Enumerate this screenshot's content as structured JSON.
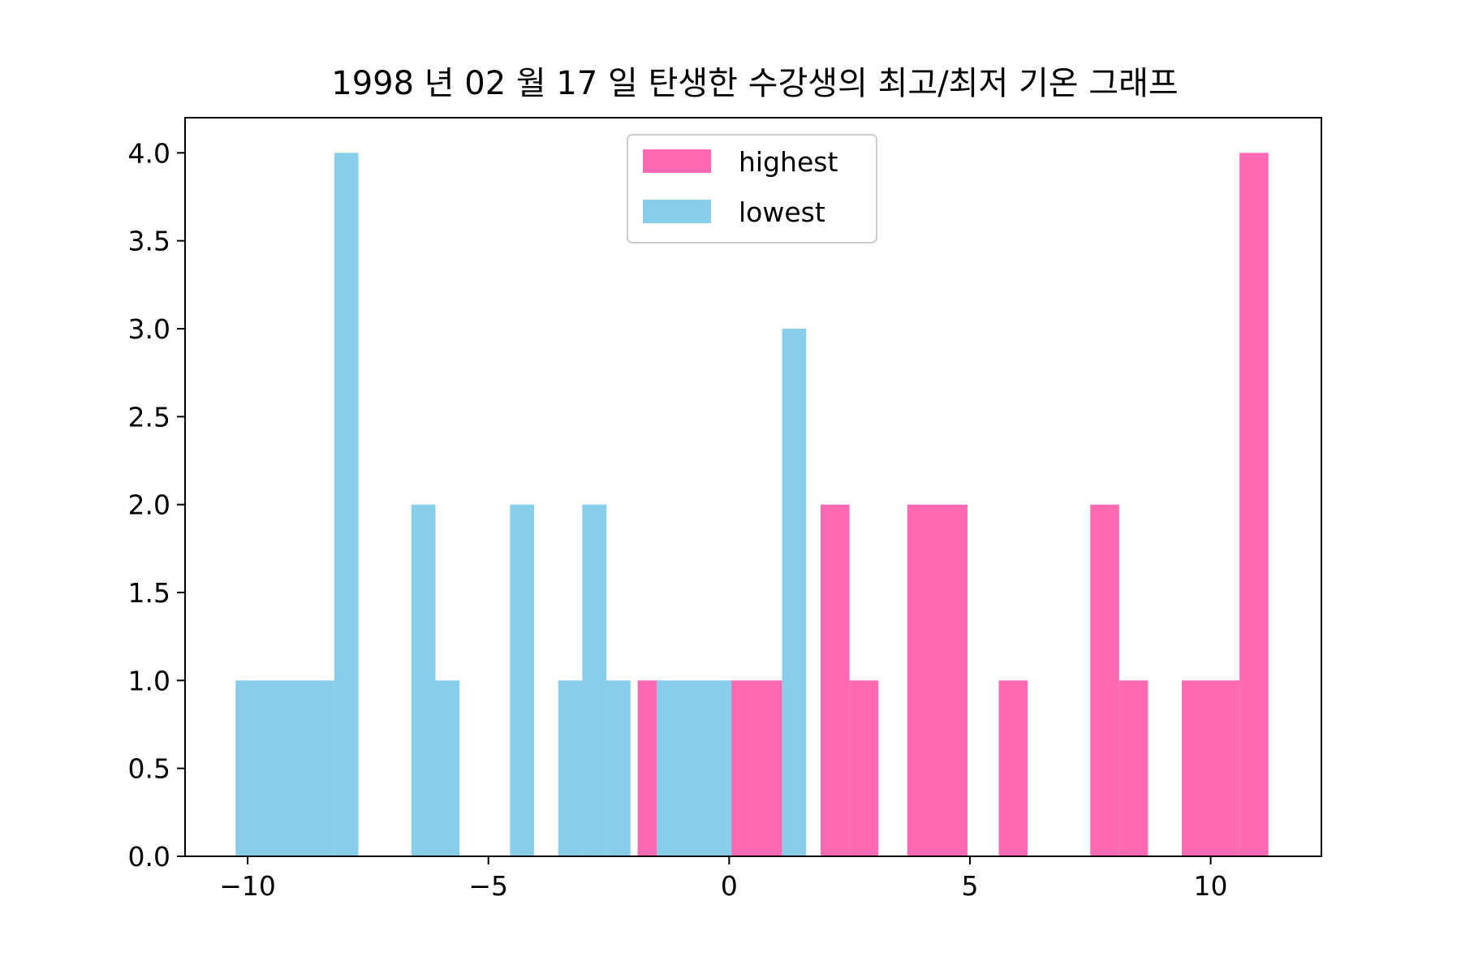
{
  "chart_data": {
    "type": "bar",
    "title": "1998 년 02 월 17 일 탄생한 수강생의 최고/최저 기온 그래프",
    "xlabel": "",
    "ylabel": "",
    "xlim": [
      -11.3,
      12.3
    ],
    "ylim": [
      0,
      4.2
    ],
    "x_ticks": [
      -10,
      -5,
      0,
      5,
      10
    ],
    "x_tick_labels": [
      "−10",
      "−5",
      "0",
      "5",
      "10"
    ],
    "y_ticks": [
      0,
      0.5,
      1,
      1.5,
      2,
      2.5,
      3,
      3.5,
      4
    ],
    "y_tick_labels": [
      "0.0",
      "0.5",
      "1.0",
      "1.5",
      "2.0",
      "2.5",
      "3.0",
      "3.5",
      "4.0"
    ],
    "grid": false,
    "legend_position": "upper center",
    "series": [
      {
        "name": "highest",
        "color": "#ff69b4",
        "bins": [
          {
            "x0": -1.9,
            "x1": -1.5,
            "count": 1
          },
          {
            "x0": 0.0,
            "x1": 1.1,
            "count": 1
          },
          {
            "x0": 1.9,
            "x1": 2.5,
            "count": 2
          },
          {
            "x0": 2.5,
            "x1": 3.1,
            "count": 1
          },
          {
            "x0": 3.7,
            "x1": 4.95,
            "count": 2
          },
          {
            "x0": 5.6,
            "x1": 6.2,
            "count": 1
          },
          {
            "x0": 7.5,
            "x1": 8.1,
            "count": 2
          },
          {
            "x0": 8.1,
            "x1": 8.7,
            "count": 1
          },
          {
            "x0": 9.4,
            "x1": 10.6,
            "count": 1
          },
          {
            "x0": 10.6,
            "x1": 11.2,
            "count": 4
          }
        ]
      },
      {
        "name": "lowest",
        "color": "#87ceeb",
        "bins": [
          {
            "x0": -10.25,
            "x1": -8.2,
            "count": 1
          },
          {
            "x0": -8.2,
            "x1": -7.7,
            "count": 4
          },
          {
            "x0": -6.6,
            "x1": -6.1,
            "count": 2
          },
          {
            "x0": -6.1,
            "x1": -5.6,
            "count": 1
          },
          {
            "x0": -4.55,
            "x1": -4.05,
            "count": 2
          },
          {
            "x0": -3.55,
            "x1": -3.05,
            "count": 1
          },
          {
            "x0": -3.05,
            "x1": -2.55,
            "count": 2
          },
          {
            "x0": -2.55,
            "x1": -2.05,
            "count": 1
          },
          {
            "x0": -1.5,
            "x1": 0.05,
            "count": 1
          },
          {
            "x0": 1.1,
            "x1": 1.6,
            "count": 3
          }
        ]
      }
    ]
  }
}
